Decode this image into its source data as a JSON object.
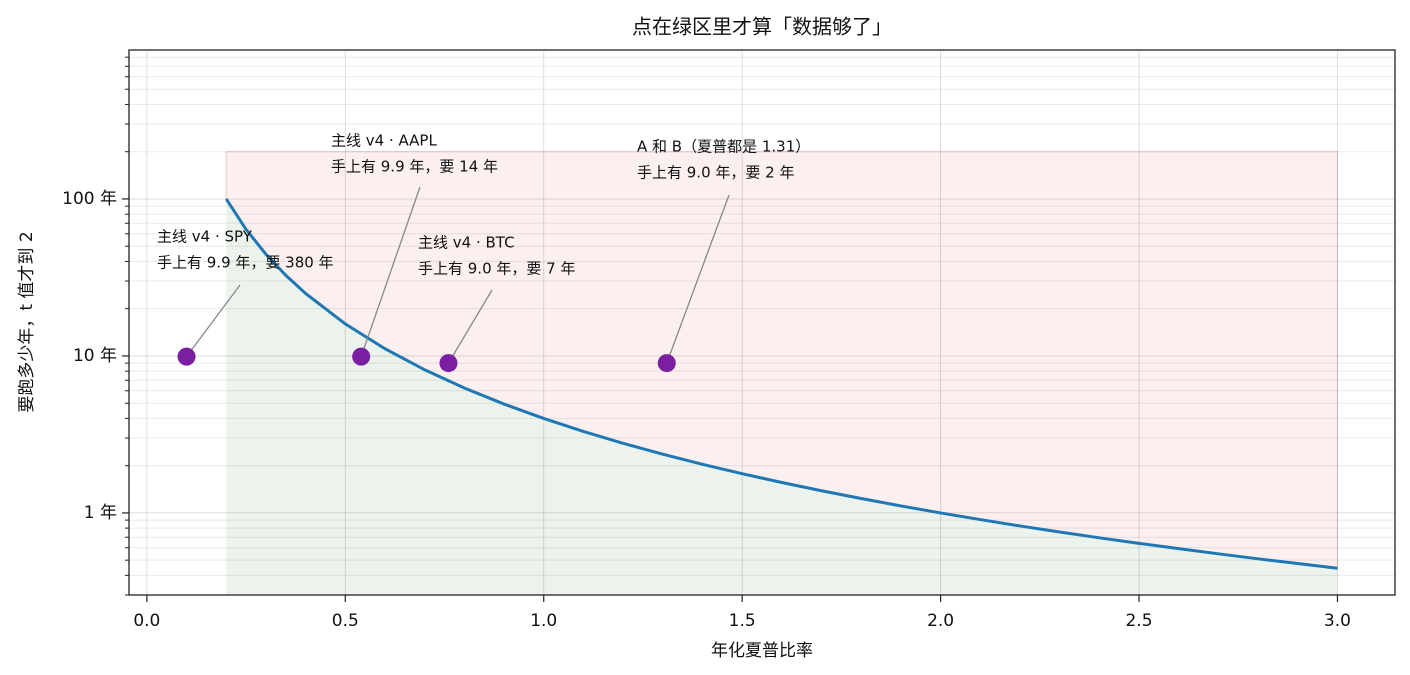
{
  "chart_data": {
    "type": "line",
    "title": "点在绿区里才算「数据够了」",
    "xlabel": "年化夏普比率",
    "ylabel": "要跑多少年，t 值才到 2",
    "xlim": [
      -0.045,
      3.145
    ],
    "ylim": [
      0.3,
      889
    ],
    "log_y": true,
    "grid": true,
    "xticks": [
      {
        "value": 0,
        "label": "0.0"
      },
      0.5,
      {
        "value": 1,
        "label": "1.0"
      },
      1.5,
      {
        "value": 2,
        "label": "2.0"
      },
      2.5,
      {
        "value": 3,
        "label": "3.0"
      }
    ],
    "yticks": [
      {
        "value": 1,
        "label": "1 年"
      },
      {
        "value": 10,
        "label": "10 年"
      },
      {
        "value": 100,
        "label": "100 年"
      }
    ],
    "yminorticks": [
      0.3,
      0.4,
      0.5,
      0.6,
      0.7,
      0.8,
      0.9,
      2,
      3,
      4,
      5,
      6,
      7,
      8,
      9,
      20,
      30,
      40,
      50,
      60,
      70,
      80,
      90,
      200,
      300,
      400,
      500,
      600,
      700,
      800
    ],
    "shade": {
      "top": 200,
      "below_color": "#ebf3ec",
      "above_color": "#fcefef",
      "above_edge": "#ecc9c9"
    },
    "series": [
      {
        "color": "#1f77b4",
        "x": [
          0.2,
          0.25,
          0.3,
          0.35,
          0.4,
          0.5,
          0.6,
          0.7,
          0.8,
          0.9,
          1.0,
          1.1,
          1.2,
          1.3,
          1.4,
          1.5,
          1.6,
          1.7,
          1.8,
          1.9,
          2.0,
          2.1,
          2.2,
          2.3,
          2.4,
          2.5,
          2.6,
          2.7,
          2.8,
          2.9,
          3.0
        ],
        "values": [
          100,
          64,
          44.444,
          32.653,
          25,
          16,
          11.111,
          8.163,
          6.25,
          4.938,
          4,
          3.306,
          2.778,
          2.367,
          2.041,
          1.778,
          1.5625,
          1.384,
          1.235,
          1.108,
          1,
          0.907,
          0.826,
          0.756,
          0.694,
          0.64,
          0.592,
          0.549,
          0.51,
          0.476,
          0.444
        ]
      }
    ],
    "points": {
      "color": "#7b1fa2",
      "x": [
        0.1,
        0.54,
        0.76,
        1.31
      ],
      "values": [
        9.9,
        9.9,
        9.0,
        9.0
      ]
    },
    "annotations": [
      [
        "主线 v4 · SPY",
        "手上有 9.9 年，要 380 年"
      ],
      [
        "主线 v4 · AAPL",
        "手上有 9.9 年，要 14 年"
      ],
      [
        "主线 v4 · BTC",
        "手上有 9.0 年，要 7 年"
      ],
      [
        "A 和 B（夏普都是 1.31）",
        "手上有 9.0 年，要 2 年"
      ]
    ]
  }
}
